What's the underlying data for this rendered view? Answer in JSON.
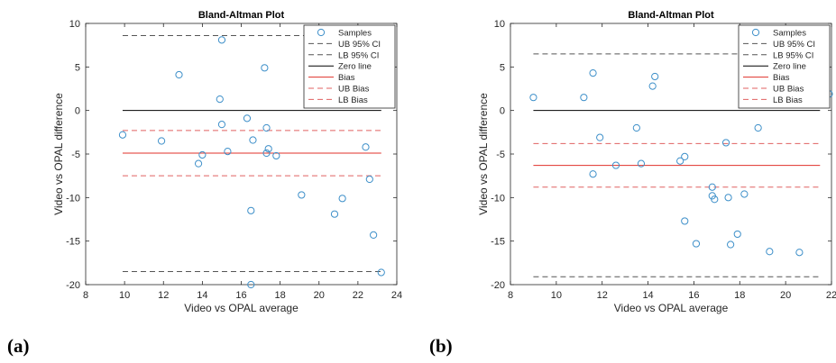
{
  "colors": {
    "samples": "#3d8fc9",
    "zero_line": "#000000",
    "bias": "#e0302a",
    "bias_limits": "#e06060",
    "ci": "#555555"
  },
  "chart_data": [
    {
      "type": "scatter",
      "panel_label": "(a)",
      "title": "Bland-Altman Plot",
      "xlabel": "Video vs OPAL average",
      "ylabel": "Video vs OPAL difference",
      "xlim": [
        8,
        24
      ],
      "ylim": [
        -20,
        10
      ],
      "x_ticks": [
        8,
        10,
        12,
        14,
        16,
        18,
        20,
        22,
        24
      ],
      "y_ticks": [
        -20,
        -15,
        -10,
        -5,
        0,
        5,
        10
      ],
      "grid": false,
      "legend_position": "top-right",
      "legend": [
        "Samples",
        "UB 95% CI",
        "LB 95% CI",
        "Zero line",
        "Bias",
        "UB Bias",
        "LB Bias"
      ],
      "samples": [
        [
          9.9,
          -2.8
        ],
        [
          11.9,
          -3.5
        ],
        [
          12.8,
          4.1
        ],
        [
          13.8,
          -6.1
        ],
        [
          14.0,
          -5.1
        ],
        [
          14.9,
          1.3
        ],
        [
          15.0,
          -1.6
        ],
        [
          15.0,
          8.1
        ],
        [
          15.3,
          -4.7
        ],
        [
          16.3,
          -0.9
        ],
        [
          16.5,
          -11.5
        ],
        [
          16.6,
          -3.4
        ],
        [
          16.5,
          -20.0
        ],
        [
          17.2,
          4.9
        ],
        [
          17.3,
          -2.0
        ],
        [
          17.3,
          -4.9
        ],
        [
          17.4,
          -4.4
        ],
        [
          17.8,
          -5.2
        ],
        [
          19.1,
          -9.7
        ],
        [
          20.8,
          -11.9
        ],
        [
          21.2,
          -10.1
        ],
        [
          22.4,
          -4.2
        ],
        [
          22.6,
          -7.9
        ],
        [
          22.8,
          -14.3
        ],
        [
          23.2,
          -18.6
        ]
      ],
      "lines": {
        "x_range": [
          9.9,
          23.2
        ],
        "ub_95_ci": 8.6,
        "lb_95_ci": -18.5,
        "zero": 0,
        "bias": -4.9,
        "ub_bias": -2.3,
        "lb_bias": -7.5
      }
    },
    {
      "type": "scatter",
      "panel_label": "(b)",
      "title": "Bland-Altman Plot",
      "xlabel": "Video vs OPAL average",
      "ylabel": "Video vs OPAL difference",
      "xlim": [
        8,
        22
      ],
      "ylim": [
        -20,
        10
      ],
      "x_ticks": [
        8,
        10,
        12,
        14,
        16,
        18,
        20,
        22
      ],
      "y_ticks": [
        -20,
        -15,
        -10,
        -5,
        0,
        5,
        10
      ],
      "grid": false,
      "legend_position": "top-right",
      "legend": [
        "Samples",
        "UB 95% CI",
        "LB 95% CI",
        "Zero line",
        "Bias",
        "UB Bias",
        "LB Bias"
      ],
      "samples": [
        [
          9.0,
          1.5
        ],
        [
          11.2,
          1.5
        ],
        [
          11.6,
          4.3
        ],
        [
          11.6,
          -7.3
        ],
        [
          11.9,
          -3.1
        ],
        [
          12.6,
          -6.3
        ],
        [
          13.5,
          -2.0
        ],
        [
          13.7,
          -6.1
        ],
        [
          14.2,
          2.8
        ],
        [
          14.3,
          3.9
        ],
        [
          15.4,
          -5.8
        ],
        [
          15.6,
          -5.3
        ],
        [
          15.6,
          -12.7
        ],
        [
          16.1,
          -15.3
        ],
        [
          16.8,
          -8.8
        ],
        [
          16.8,
          -9.8
        ],
        [
          16.9,
          -10.2
        ],
        [
          17.4,
          -3.7
        ],
        [
          17.5,
          -10.0
        ],
        [
          17.6,
          -15.4
        ],
        [
          17.9,
          -14.2
        ],
        [
          18.2,
          -9.6
        ],
        [
          18.8,
          -2.0
        ],
        [
          19.3,
          -16.2
        ],
        [
          20.6,
          -16.3
        ],
        [
          21.9,
          1.9
        ]
      ],
      "lines": {
        "x_range": [
          9.0,
          21.5
        ],
        "ub_95_ci": 6.5,
        "lb_95_ci": -19.1,
        "zero": 0,
        "bias": -6.3,
        "ub_bias": -3.8,
        "lb_bias": -8.8
      }
    }
  ]
}
